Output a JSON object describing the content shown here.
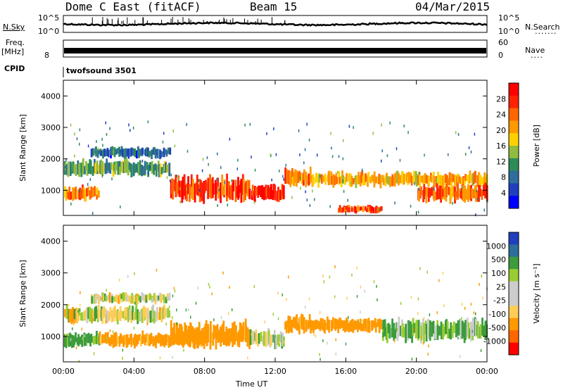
{
  "header": {
    "station": "Dome C East (fitACF)",
    "beam": "Beam 15",
    "date": "04/Mar/2015"
  },
  "top_panels": {
    "nsky_label": "N.Sky",
    "nsky_ticks": [
      "10^5",
      "10^0"
    ],
    "nsearch_label": "N.Search",
    "nsearch_ticks": [
      "10^5",
      "10^0"
    ],
    "freq_label": "Freq.",
    "freq_unit": "[MHz]",
    "freq_ticks": [
      "8"
    ],
    "nave_label": "Nave",
    "nave_ticks": [
      "60",
      "0"
    ],
    "cpid_label": "CPID",
    "cpid_value": "twofsound 3501"
  },
  "colors": {
    "power": [
      "#0000ff",
      "#1f3fbf",
      "#2e6e9a",
      "#2e8b57",
      "#8fbc3f",
      "#ffd000",
      "#ff9900",
      "#ff6600",
      "#ff2200",
      "#ff0000"
    ],
    "velocity": [
      "#ff0000",
      "#ff6600",
      "#ff9900",
      "#ffcc55",
      "#cccccc",
      "#cccccc",
      "#9acd32",
      "#3c9c3c",
      "#2e6e9a",
      "#1f3fbf"
    ]
  },
  "chart_data": [
    {
      "type": "heatmap",
      "name": "power",
      "ylabel": "Slant Range [km]",
      "xlabel": "Time UT",
      "x_ticks": [
        "00:00",
        "04:00",
        "08:00",
        "12:00",
        "16:00",
        "20:00",
        "00:00"
      ],
      "y_ticks": [
        "1000",
        "2000",
        "3000",
        "4000"
      ],
      "ylim": [
        200,
        4500
      ],
      "colorbar": {
        "label": "Power [dB]",
        "ticks": [
          "28",
          "24",
          "20",
          "16",
          "12",
          "8",
          "4"
        ],
        "range": [
          0,
          32
        ]
      },
      "echo_bands": [
        {
          "t_start": 0.0,
          "t_end": 2.0,
          "range_center": 900,
          "range_width": 400,
          "power": 22
        },
        {
          "t_start": 0.0,
          "t_end": 6.0,
          "range_center": 1700,
          "range_width": 450,
          "power": 12
        },
        {
          "t_start": 1.5,
          "t_end": 6.0,
          "range_center": 2200,
          "range_width": 300,
          "power": 8
        },
        {
          "t_start": 6.0,
          "t_end": 10.5,
          "range_center": 1050,
          "range_width": 700,
          "power": 26
        },
        {
          "t_start": 10.5,
          "t_end": 12.5,
          "range_center": 900,
          "range_width": 500,
          "power": 28
        },
        {
          "t_start": 12.5,
          "t_end": 14.0,
          "range_center": 1400,
          "range_width": 500,
          "power": 22
        },
        {
          "t_start": 14.0,
          "t_end": 24.0,
          "range_center": 1350,
          "range_width": 400,
          "power": 20
        },
        {
          "t_start": 15.5,
          "t_end": 18.0,
          "range_center": 400,
          "range_width": 200,
          "power": 26
        },
        {
          "t_start": 20.0,
          "t_end": 24.0,
          "range_center": 900,
          "range_width": 500,
          "power": 24
        }
      ]
    },
    {
      "type": "heatmap",
      "name": "velocity",
      "ylabel": "Slant Range [km]",
      "xlabel": "Time UT",
      "x_ticks": [
        "00:00",
        "04:00",
        "08:00",
        "12:00",
        "16:00",
        "20:00",
        "00:00"
      ],
      "y_ticks": [
        "1000",
        "2000",
        "3000",
        "4000"
      ],
      "ylim": [
        200,
        4500
      ],
      "colorbar": {
        "label": "Velocity [m s⁻¹]",
        "ticks": [
          "1000",
          "500",
          "100",
          "25",
          "-25",
          "-100",
          "-500",
          "-1000"
        ]
      },
      "echo_bands": [
        {
          "t_start": 0.0,
          "t_end": 2.0,
          "range_center": 900,
          "range_width": 400,
          "velocity": 150
        },
        {
          "t_start": 0.0,
          "t_end": 6.0,
          "range_center": 1700,
          "range_width": 450,
          "velocity": 0
        },
        {
          "t_start": 1.5,
          "t_end": 6.0,
          "range_center": 2200,
          "range_width": 300,
          "velocity": 0
        },
        {
          "t_start": 2.0,
          "t_end": 8.0,
          "range_center": 900,
          "range_width": 400,
          "velocity": -200
        },
        {
          "t_start": 6.0,
          "t_end": 10.5,
          "range_center": 1050,
          "range_width": 700,
          "velocity": -300
        },
        {
          "t_start": 10.5,
          "t_end": 12.5,
          "range_center": 900,
          "range_width": 500,
          "velocity": 50
        },
        {
          "t_start": 12.5,
          "t_end": 14.0,
          "range_center": 1400,
          "range_width": 500,
          "velocity": -200
        },
        {
          "t_start": 14.0,
          "t_end": 18.0,
          "range_center": 1350,
          "range_width": 400,
          "velocity": -250
        },
        {
          "t_start": 18.0,
          "t_end": 24.0,
          "range_center": 1200,
          "range_width": 600,
          "velocity": 120
        }
      ]
    }
  ]
}
